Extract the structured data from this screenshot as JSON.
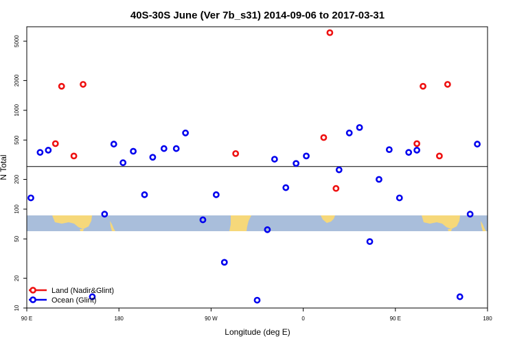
{
  "chart_data": {
    "type": "scatter",
    "title": "40S-30S June (Ver 7b_s31)   2014-09-06 to 2017-03-31",
    "xlabel": "Longitude (deg E)",
    "ylabel": "N Total",
    "y_scale": "log",
    "xlim": [
      90,
      540
    ],
    "ylim": [
      10,
      7000
    ],
    "x_ticks": [
      {
        "value": 90,
        "label": "90 E"
      },
      {
        "value": 180,
        "label": "180"
      },
      {
        "value": 270,
        "label": "90 W"
      },
      {
        "value": 360,
        "label": "0"
      },
      {
        "value": 450,
        "label": "90 E"
      },
      {
        "value": 540,
        "label": "180"
      }
    ],
    "y_ticks": [
      {
        "value": 10,
        "label": "10"
      },
      {
        "value": 20,
        "label": "20"
      },
      {
        "value": 50,
        "label": "50"
      },
      {
        "value": 100,
        "label": "100"
      },
      {
        "value": 200,
        "label": "200"
      },
      {
        "value": 500,
        "label": "500"
      },
      {
        "value": 1000,
        "label": "1000"
      },
      {
        "value": 2000,
        "label": "2000"
      },
      {
        "value": 5000,
        "label": "5000"
      }
    ],
    "reference_line_y": 270,
    "legend_position": "bottom-left",
    "series": [
      {
        "name": "Land (Nadir&Glint)",
        "color": "#ee1111",
        "points": [
          [
            118,
            460
          ],
          [
            124,
            1750
          ],
          [
            136,
            345
          ],
          [
            145,
            1830
          ],
          [
            294,
            365
          ],
          [
            380,
            530
          ],
          [
            386,
            6100
          ],
          [
            392,
            162
          ],
          [
            471,
            460
          ],
          [
            477,
            1750
          ],
          [
            493,
            345
          ],
          [
            501,
            1830
          ]
        ]
      },
      {
        "name": "Ocean (Glint)",
        "color": "#0000ee",
        "points": [
          [
            94,
            130
          ],
          [
            103,
            375
          ],
          [
            111,
            395
          ],
          [
            154,
            13
          ],
          [
            166,
            89
          ],
          [
            175,
            455
          ],
          [
            184,
            295
          ],
          [
            194,
            385
          ],
          [
            205,
            140
          ],
          [
            213,
            335
          ],
          [
            224,
            410
          ],
          [
            236,
            410
          ],
          [
            245,
            590
          ],
          [
            262,
            78
          ],
          [
            275,
            140
          ],
          [
            283,
            29
          ],
          [
            315,
            12
          ],
          [
            325,
            62
          ],
          [
            332,
            320
          ],
          [
            343,
            165
          ],
          [
            353,
            290
          ],
          [
            363,
            345
          ],
          [
            395,
            250
          ],
          [
            405,
            590
          ],
          [
            415,
            670
          ],
          [
            425,
            47
          ],
          [
            434,
            200
          ],
          [
            444,
            400
          ],
          [
            454,
            130
          ],
          [
            463,
            375
          ],
          [
            471,
            395
          ],
          [
            513,
            13
          ],
          [
            523,
            89
          ],
          [
            530,
            455
          ]
        ]
      }
    ]
  }
}
